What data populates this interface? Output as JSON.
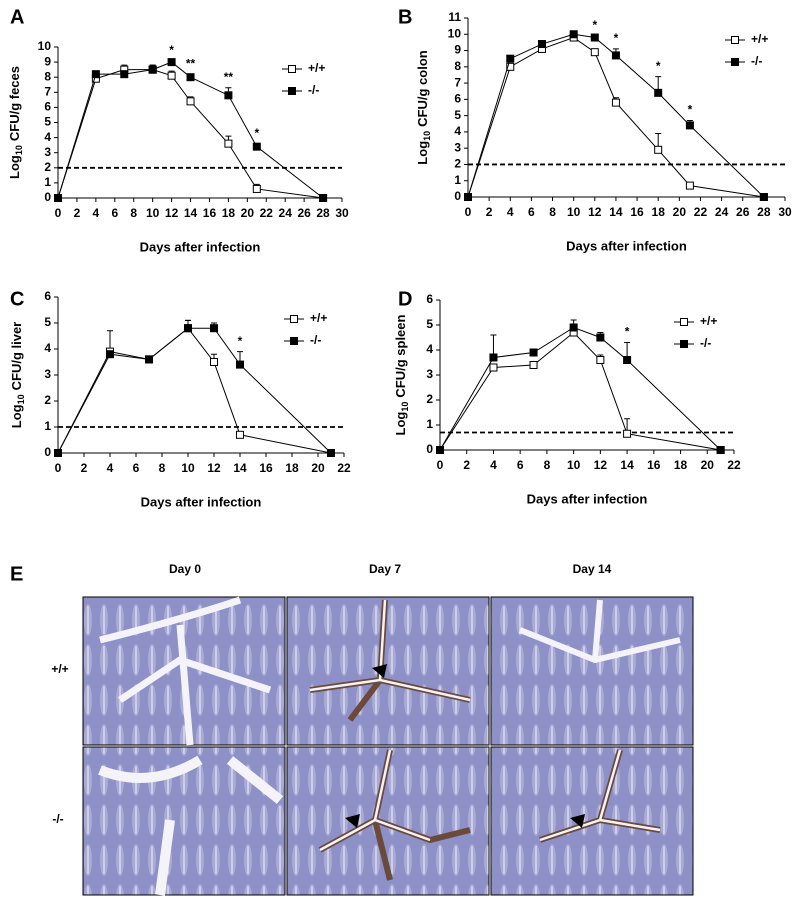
{
  "chart_data": [
    {
      "type": "line",
      "label": "A",
      "xlabel": "Days after infection",
      "ylabel": [
        "Log",
        "10",
        "CFU/g feces"
      ],
      "x": [
        0,
        4,
        7,
        10,
        12,
        14,
        18,
        21,
        28
      ],
      "xlim": [
        0,
        30
      ],
      "xticks": [
        0,
        2,
        4,
        6,
        8,
        10,
        12,
        14,
        16,
        18,
        20,
        22,
        24,
        26,
        28,
        30
      ],
      "ylim": [
        0,
        10
      ],
      "yticks": [
        0,
        1,
        2,
        3,
        4,
        5,
        6,
        7,
        8,
        9,
        10
      ],
      "hline": 2,
      "legend": "upper right",
      "series": [
        {
          "name": "+/+",
          "color": "#000000",
          "fill": "#ffffff",
          "values": [
            0,
            7.9,
            8.5,
            8.5,
            8.1,
            6.4,
            3.6,
            0.6,
            0
          ],
          "errors": [
            0,
            0.2,
            0.3,
            0.3,
            0.3,
            0.3,
            0.5,
            0.3,
            0
          ]
        },
        {
          "name": "-/-",
          "color": "#000000",
          "fill": "#000000",
          "values": [
            0,
            8.2,
            8.2,
            8.5,
            9.0,
            8.0,
            6.8,
            3.4,
            0
          ],
          "errors": [
            0,
            0.1,
            0.2,
            0.3,
            0.1,
            0.2,
            0.5,
            0.2,
            0
          ]
        }
      ],
      "annotations": [
        {
          "x": 12,
          "text": "*"
        },
        {
          "x": 14,
          "text": "**"
        },
        {
          "x": 18,
          "text": "**"
        },
        {
          "x": 21,
          "text": "*"
        }
      ]
    },
    {
      "type": "line",
      "label": "B",
      "xlabel": "Days after infection",
      "ylabel": [
        "Log",
        "10",
        "CFU/g colon"
      ],
      "x": [
        0,
        4,
        7,
        10,
        12,
        14,
        18,
        21,
        28
      ],
      "xlim": [
        0,
        30
      ],
      "xticks": [
        0,
        2,
        4,
        6,
        8,
        10,
        12,
        14,
        16,
        18,
        20,
        22,
        24,
        26,
        28,
        30
      ],
      "ylim": [
        0,
        11
      ],
      "yticks": [
        0,
        1,
        2,
        3,
        4,
        5,
        6,
        7,
        8,
        9,
        10,
        11
      ],
      "hline": 2,
      "legend": "upper right",
      "series": [
        {
          "name": "+/+",
          "color": "#000000",
          "fill": "#ffffff",
          "values": [
            0,
            8.0,
            9.1,
            9.8,
            8.9,
            5.8,
            2.9,
            0.7,
            0
          ],
          "errors": [
            0,
            0.2,
            0.1,
            0.2,
            0.1,
            0.3,
            1.0,
            0.1,
            0
          ]
        },
        {
          "name": "-/-",
          "color": "#000000",
          "fill": "#000000",
          "values": [
            0,
            8.5,
            9.4,
            10.0,
            9.8,
            8.7,
            6.4,
            4.4,
            0
          ],
          "errors": [
            0,
            0.1,
            0.1,
            0.2,
            0.1,
            0.4,
            1.0,
            0.3,
            0
          ]
        }
      ],
      "annotations": [
        {
          "x": 12,
          "text": "*"
        },
        {
          "x": 14,
          "text": "*"
        },
        {
          "x": 18,
          "text": "*"
        },
        {
          "x": 21,
          "text": "*"
        }
      ]
    },
    {
      "type": "line",
      "label": "C",
      "xlabel": "Days after infection",
      "ylabel": [
        "Log",
        "10",
        "CFU/g liver"
      ],
      "x": [
        0,
        4,
        7,
        10,
        12,
        14,
        21
      ],
      "xlim": [
        0,
        22
      ],
      "xticks": [
        0,
        2,
        4,
        6,
        8,
        10,
        12,
        14,
        16,
        18,
        20,
        22
      ],
      "ylim": [
        0,
        6
      ],
      "yticks": [
        0,
        1,
        2,
        3,
        4,
        5,
        6
      ],
      "hline": 1,
      "legend": "upper right",
      "series": [
        {
          "name": "+/+",
          "color": "#000000",
          "fill": "#ffffff",
          "values": [
            0,
            3.9,
            3.6,
            4.8,
            3.5,
            0.7,
            0
          ],
          "errors": [
            0,
            0.8,
            0,
            0.3,
            0.3,
            0.1,
            0
          ]
        },
        {
          "name": "-/-",
          "color": "#000000",
          "fill": "#000000",
          "values": [
            0,
            3.8,
            3.6,
            4.8,
            4.8,
            3.4,
            0
          ],
          "errors": [
            0,
            0.1,
            0.1,
            0.3,
            0.2,
            0.5,
            0
          ]
        }
      ],
      "annotations": [
        {
          "x": 14,
          "text": "*"
        }
      ]
    },
    {
      "type": "line",
      "label": "D",
      "xlabel": "Days after infection",
      "ylabel": [
        "Log",
        "10",
        "CFU/g spleen"
      ],
      "x": [
        0,
        4,
        7,
        10,
        12,
        14,
        21
      ],
      "xlim": [
        0,
        22
      ],
      "xticks": [
        0,
        2,
        4,
        6,
        8,
        10,
        12,
        14,
        16,
        18,
        20,
        22
      ],
      "ylim": [
        0,
        6
      ],
      "yticks": [
        0,
        1,
        2,
        3,
        4,
        5,
        6
      ],
      "hline": 0.7,
      "legend": "upper right",
      "series": [
        {
          "name": "+/+",
          "color": "#000000",
          "fill": "#ffffff",
          "values": [
            0,
            3.3,
            3.4,
            4.7,
            3.6,
            0.65,
            0
          ],
          "errors": [
            0,
            0.1,
            0.1,
            0.3,
            0.2,
            0.6,
            0
          ]
        },
        {
          "name": "-/-",
          "color": "#000000",
          "fill": "#000000",
          "values": [
            0,
            3.7,
            3.9,
            4.9,
            4.5,
            3.6,
            0
          ],
          "errors": [
            0,
            0.9,
            0.1,
            0.3,
            0.2,
            0.7,
            0
          ]
        }
      ],
      "annotations": [
        {
          "x": 14,
          "text": "*"
        }
      ]
    }
  ],
  "panel_e": {
    "label": "E",
    "columns": [
      "Day 0",
      "Day 7",
      "Day 14"
    ],
    "rows": [
      "+/+",
      "-/-"
    ]
  }
}
